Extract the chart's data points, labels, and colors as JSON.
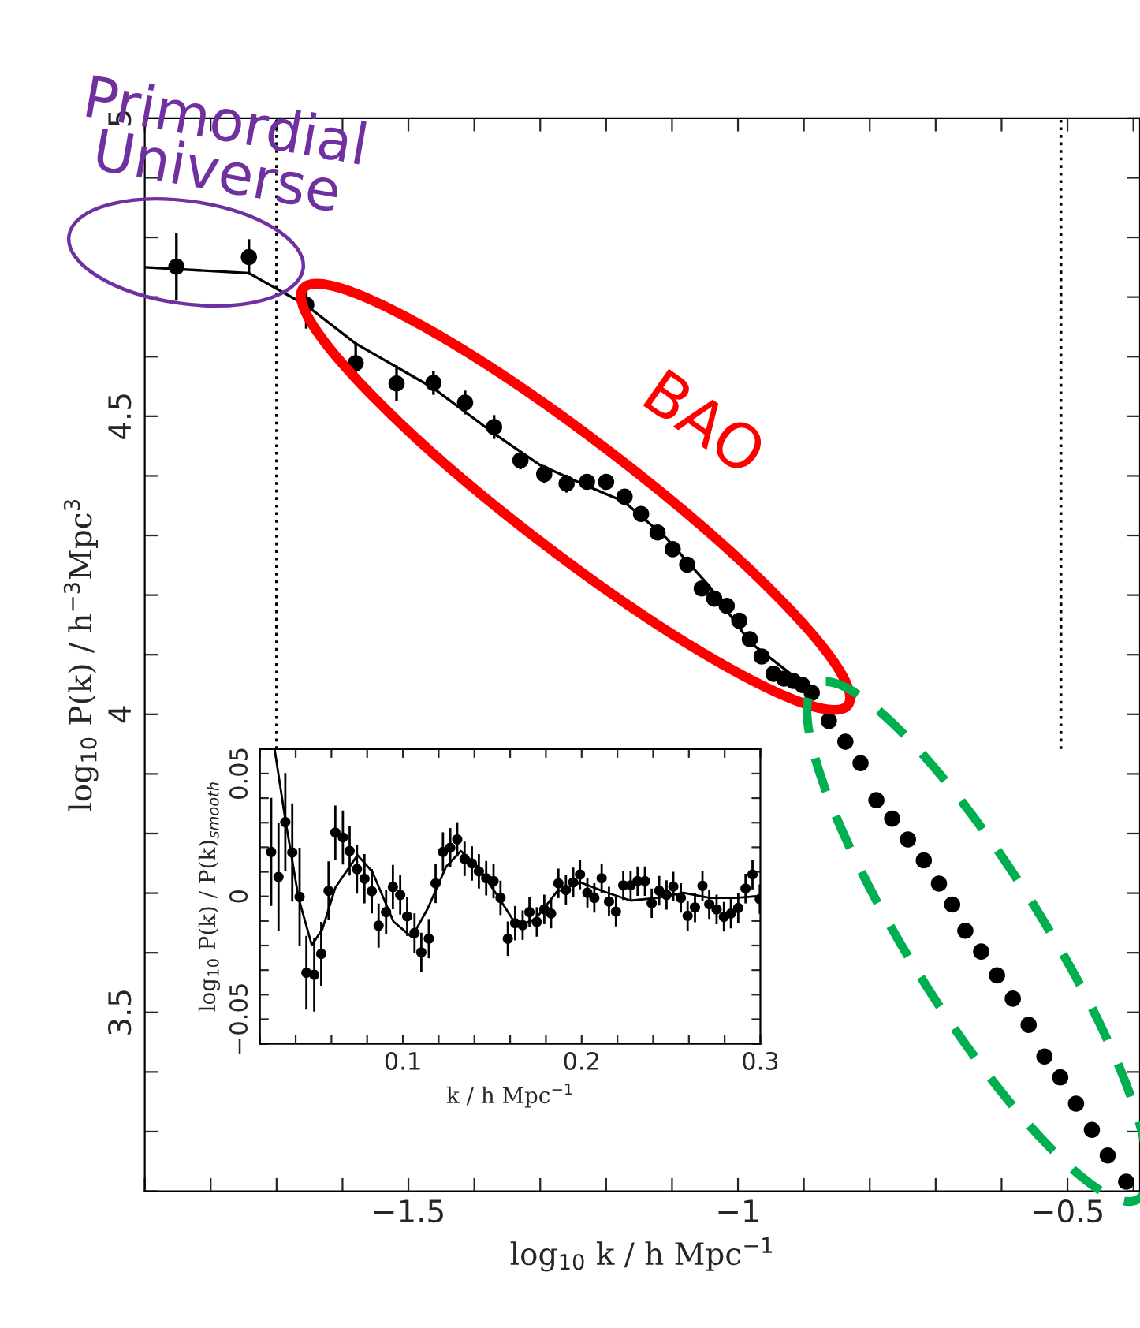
{
  "chart_data": [
    {
      "type": "scatter",
      "xlabel": "log$_{10}$ k / h Mpc$^{−1}$",
      "ylabel": "log$_{10}$ P(k) / h$^{−3}$Mpc$^{3}$",
      "annotations": [
        "Primordial Universe",
        "BAO"
      ],
      "xlim": [
        -1.9,
        -0.39
      ],
      "ylim": [
        3.2,
        5.0
      ],
      "xticks": [
        {
          "value": -1.9,
          "label": null
        },
        {
          "value": -1.8,
          "label": null
        },
        {
          "value": -1.7,
          "label": null
        },
        {
          "value": -1.6,
          "label": null
        },
        -1.5,
        {
          "value": -1.4,
          "label": null
        },
        {
          "value": -1.3,
          "label": null
        },
        {
          "value": -1.2,
          "label": null
        },
        {
          "value": -1.1,
          "label": null
        },
        -1,
        {
          "value": -0.9,
          "label": null
        },
        {
          "value": -0.8,
          "label": null
        },
        {
          "value": -0.7,
          "label": null
        },
        {
          "value": -0.6,
          "label": null
        },
        -0.5,
        {
          "value": -0.4,
          "label": null
        }
      ],
      "yticks": [
        {
          "value": 3.2,
          "label": null
        },
        {
          "value": 3.3,
          "label": null
        },
        {
          "value": 3.4,
          "label": null
        },
        3.5,
        {
          "value": 3.6,
          "label": null
        },
        {
          "value": 3.7,
          "label": null
        },
        {
          "value": 3.8,
          "label": null
        },
        {
          "value": 3.9,
          "label": null
        },
        4,
        {
          "value": 4.1,
          "label": null
        },
        {
          "value": 4.2,
          "label": null
        },
        {
          "value": 4.3,
          "label": null
        },
        {
          "value": 4.4,
          "label": null
        },
        4.5,
        {
          "value": 4.6,
          "label": null
        },
        {
          "value": 4.7,
          "label": null
        },
        {
          "value": 4.8,
          "label": null
        },
        {
          "value": 4.9,
          "label": null
        },
        5
      ],
      "grid": false,
      "legend": false,
      "ref_lines": [
        {
          "axis": "x",
          "value": -1.7,
          "color": "#000000",
          "line_style": "dotted"
        },
        {
          "axis": "x",
          "value": -0.51,
          "color": "#000000",
          "line_style": "dotted"
        }
      ],
      "series": [
        {
          "type": "scatter",
          "marker": "circle",
          "color": "#000000",
          "x": [
            -1.852,
            -1.742,
            -1.655,
            -1.58,
            -1.518,
            -1.462,
            -1.414,
            -1.37,
            -1.33,
            -1.294,
            -1.26,
            -1.229,
            -1.2,
            -1.172,
            -1.147,
            -1.122,
            -1.099,
            -1.077,
            -1.055,
            -1.036,
            -1.017,
            -0.998,
            -0.982,
            -0.964,
            -0.946,
            -0.93,
            -0.916,
            -0.902,
            -0.888,
            -0.862,
            -0.837,
            -0.814,
            -0.79,
            -0.766,
            -0.742,
            -0.718,
            -0.695,
            -0.675,
            -0.655,
            -0.631,
            -0.607,
            -0.583,
            -0.559,
            -0.535,
            -0.511,
            -0.487,
            -0.463,
            -0.439,
            -0.411
          ],
          "values": [
            4.751,
            4.767,
            4.687,
            4.589,
            4.555,
            4.556,
            4.523,
            4.482,
            4.426,
            4.403,
            4.387,
            4.39,
            4.39,
            4.365,
            4.336,
            4.305,
            4.277,
            4.251,
            4.211,
            4.194,
            4.182,
            4.157,
            4.126,
            4.097,
            4.068,
            4.06,
            4.056,
            4.049,
            4.036,
            3.989,
            3.954,
            3.918,
            3.856,
            3.825,
            3.79,
            3.755,
            3.716,
            3.681,
            3.637,
            3.602,
            3.562,
            3.523,
            3.479,
            3.426,
            3.391,
            3.347,
            3.303,
            3.26,
            3.216
          ],
          "errors": [
            0.057,
            0.03,
            0.04,
            0.035,
            0.03,
            0.02,
            0.02,
            0.02,
            0.015,
            0.015,
            0.015,
            0.012,
            0.012,
            0.012,
            0.01,
            0.01,
            0.01,
            0.01,
            0.01,
            0.01,
            0.01,
            0.01,
            0.01,
            0.01,
            0.01,
            0.01,
            0.01,
            0.01,
            0.01,
            null,
            null,
            null,
            null,
            null,
            null,
            null,
            null,
            null,
            null,
            null,
            null,
            null,
            null,
            null,
            null,
            null,
            null,
            null,
            null
          ]
        },
        {
          "type": "line",
          "marker": "none",
          "line_style": "solid",
          "color": "#000000",
          "x": [
            -1.9,
            -1.742,
            -1.655,
            -1.58,
            -1.462,
            -1.37,
            -1.3,
            -1.229,
            -1.173,
            -1.109,
            -1.045,
            -0.982,
            -0.879
          ],
          "values": [
            4.75,
            4.74,
            4.686,
            4.622,
            4.547,
            4.471,
            4.418,
            4.383,
            4.357,
            4.296,
            4.217,
            4.121,
            4.033
          ]
        }
      ]
    },
    {
      "type": "scatter",
      "xlabel": "k / h Mpc$^{−1}$",
      "ylabel": "log$_{10}$ P(k) / P(k)$_{smooth}$",
      "xlim": [
        0.02,
        0.3
      ],
      "ylim": [
        -0.06,
        0.06
      ],
      "xticks": [
        {
          "value": 0.02,
          "label": null
        },
        {
          "value": 0.04,
          "label": null
        },
        {
          "value": 0.06,
          "label": null
        },
        {
          "value": 0.08,
          "label": null
        },
        0.1,
        {
          "value": 0.12,
          "label": null
        },
        {
          "value": 0.14,
          "label": null
        },
        {
          "value": 0.16,
          "label": null
        },
        {
          "value": 0.18,
          "label": null
        },
        0.2,
        {
          "value": 0.22,
          "label": null
        },
        {
          "value": 0.24,
          "label": null
        },
        {
          "value": 0.26,
          "label": null
        },
        {
          "value": 0.28,
          "label": null
        },
        0.3
      ],
      "yticks": [
        {
          "value": -0.06,
          "label": null
        },
        {
          "value": -0.05,
          "label": "−0.05"
        },
        {
          "value": -0.04,
          "label": null
        },
        {
          "value": -0.03,
          "label": null
        },
        {
          "value": -0.02,
          "label": null
        },
        {
          "value": -0.01,
          "label": null
        },
        0,
        {
          "value": 0.01,
          "label": null
        },
        {
          "value": 0.02,
          "label": null
        },
        {
          "value": 0.03,
          "label": null
        },
        {
          "value": 0.04,
          "label": null
        },
        0.05,
        {
          "value": 0.06,
          "label": null
        }
      ],
      "grid": false,
      "legend": false,
      "series": [
        {
          "type": "scatter",
          "marker": "circle",
          "color": "#000000",
          "x": [
            0.0263,
            0.0304,
            0.0342,
            0.0381,
            0.0422,
            0.046,
            0.0504,
            0.0543,
            0.0584,
            0.0622,
            0.0664,
            0.0702,
            0.0743,
            0.0785,
            0.0826,
            0.0864,
            0.0906,
            0.0944,
            0.0985,
            0.1024,
            0.1065,
            0.1103,
            0.1145,
            0.1183,
            0.1224,
            0.1265,
            0.1304,
            0.1345,
            0.1386,
            0.1425,
            0.1466,
            0.1507,
            0.1546,
            0.1587,
            0.1628,
            0.167,
            0.1708,
            0.1749,
            0.1791,
            0.1829,
            0.187,
            0.1912,
            0.1953,
            0.1991,
            0.2032,
            0.2071,
            0.2112,
            0.2153,
            0.2192,
            0.2233,
            0.2274,
            0.2313,
            0.2354,
            0.2392,
            0.2434,
            0.2475,
            0.2513,
            0.2555,
            0.2593,
            0.2634,
            0.2676,
            0.2714,
            0.2755,
            0.2796,
            0.2835,
            0.2876,
            0.2917,
            0.2956,
            0.2997
          ],
          "values": [
            0.0181,
            0.0079,
            0.0302,
            0.0179,
            -0.0002,
            -0.0311,
            -0.0319,
            -0.0234,
            0.0023,
            0.026,
            0.024,
            0.0185,
            0.0111,
            0.0072,
            0.0021,
            -0.0119,
            -0.0064,
            0.0038,
            0.0006,
            -0.0081,
            -0.0149,
            -0.0228,
            -0.0172,
            0.0053,
            0.0181,
            0.0198,
            0.0232,
            0.0153,
            0.0134,
            0.0102,
            0.0074,
            0.0062,
            -0.0006,
            -0.0172,
            -0.0109,
            -0.0117,
            -0.0064,
            -0.0104,
            -0.0053,
            -0.007,
            0.0053,
            0.0026,
            0.0057,
            0.0089,
            0.0015,
            -0.0006,
            0.0074,
            -0.0021,
            -0.0062,
            0.0045,
            0.0045,
            0.0062,
            0.0062,
            -0.0028,
            0.0023,
            0.0006,
            0.004,
            -0.0006,
            -0.0079,
            -0.0045,
            0.0043,
            -0.0032,
            -0.0053,
            -0.0083,
            -0.007,
            -0.0047,
            0.0032,
            0.0089,
            -0.0011
          ],
          "errors": [
            0.022,
            0.022,
            0.02,
            0.02,
            0.02,
            0.015,
            0.015,
            0.013,
            0.012,
            0.011,
            0.011,
            0.01,
            0.01,
            0.01,
            0.009,
            0.009,
            0.009,
            0.009,
            0.008,
            0.008,
            0.008,
            0.008,
            0.008,
            0.008,
            0.008,
            0.008,
            0.007,
            0.007,
            0.007,
            0.007,
            0.007,
            0.007,
            0.007,
            0.007,
            0.007,
            0.006,
            0.006,
            0.006,
            0.006,
            0.006,
            0.006,
            0.006,
            0.006,
            0.006,
            0.006,
            0.006,
            0.006,
            0.006,
            0.006,
            0.006,
            0.006,
            0.006,
            0.006,
            0.006,
            0.006,
            0.006,
            0.006,
            0.006,
            0.006,
            0.006,
            0.006,
            0.006,
            0.006,
            0.006,
            0.006,
            0.006,
            0.006,
            0.006,
            0.006
          ]
        },
        {
          "type": "line",
          "marker": "none",
          "line_style": "solid",
          "color": "#000000",
          "x": [
            0.0282,
            0.0342,
            0.0416,
            0.049,
            0.0549,
            0.0622,
            0.0746,
            0.0829,
            0.0947,
            0.105,
            0.1139,
            0.1242,
            0.1324,
            0.1419,
            0.1537,
            0.164,
            0.1743,
            0.1861,
            0.1994,
            0.2127,
            0.2274,
            0.2422,
            0.2569,
            0.2717,
            0.2864,
            0.3
          ],
          "values": [
            0.06,
            0.0313,
            -0.0006,
            -0.0198,
            -0.0134,
            0.0036,
            0.0168,
            0.01,
            -0.0102,
            -0.0166,
            -0.0049,
            0.0121,
            0.0185,
            0.0121,
            -0.0006,
            -0.0123,
            -0.0091,
            0.0019,
            0.0057,
            0.0019,
            -0.0017,
            -0.0006,
            0.0015,
            -0.0006,
            -0.0006,
            0.0002
          ]
        }
      ]
    }
  ]
}
